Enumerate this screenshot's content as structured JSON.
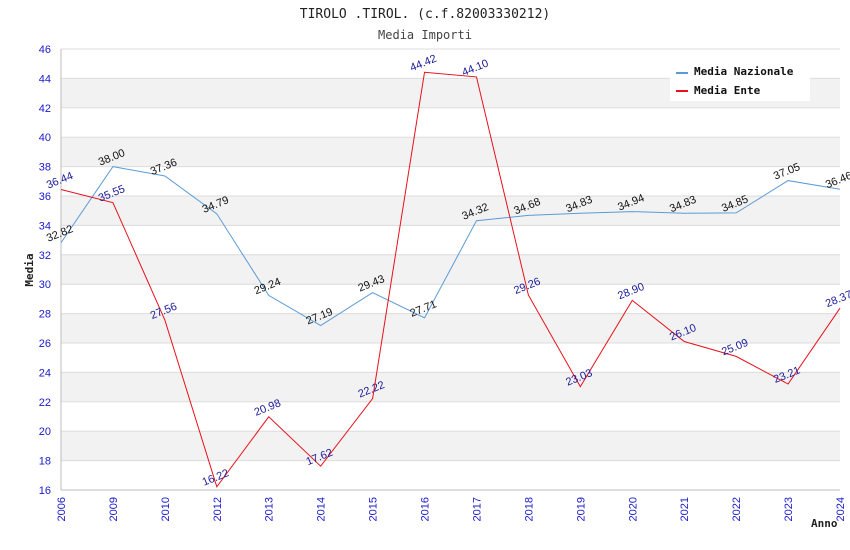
{
  "chart_data": {
    "type": "line",
    "title": "TIROLO .TIROL. (c.f.82003330212)",
    "subtitle": "Media Importi",
    "xlabel": "Anno",
    "ylabel": "Media",
    "ylim": [
      16,
      46
    ],
    "yticks": [
      16,
      18,
      20,
      22,
      24,
      26,
      28,
      30,
      32,
      34,
      36,
      38,
      40,
      42,
      44,
      46
    ],
    "categories": [
      "2006",
      "2009",
      "2010",
      "2012",
      "2013",
      "2014",
      "2015",
      "2016",
      "2017",
      "2018",
      "2019",
      "2020",
      "2021",
      "2022",
      "2023",
      "2024"
    ],
    "legend_position": "top-right",
    "grid": "horizontal alternating bands",
    "series": [
      {
        "name": "Media Nazionale",
        "color": "#5b9bd5",
        "values": [
          32.82,
          38.0,
          37.36,
          34.79,
          29.24,
          27.19,
          29.43,
          27.71,
          34.32,
          34.68,
          34.83,
          34.94,
          34.83,
          34.85,
          37.05,
          36.46
        ],
        "labels": [
          "32.82",
          "38.00",
          "37.36",
          "34.79",
          "29.24",
          "27.19",
          "29.43",
          "27.71",
          "34.32",
          "34.68",
          "34.83",
          "34.94",
          "34.83",
          "34.85",
          "37.05",
          "36.46"
        ]
      },
      {
        "name": "Media Ente",
        "color": "#e8101a",
        "values": [
          36.44,
          35.55,
          27.56,
          16.22,
          20.98,
          17.62,
          22.22,
          44.42,
          44.1,
          29.26,
          23.03,
          28.9,
          26.1,
          25.09,
          23.21,
          28.37
        ],
        "labels": [
          "36.44",
          "35.55",
          "27.56",
          "16.22",
          "20.98",
          "17.62",
          "22.22",
          "44.42",
          "44.10",
          "29.26",
          "23.03",
          "28.90",
          "26.10",
          "25.09",
          "23.21",
          "28.37"
        ]
      }
    ]
  }
}
